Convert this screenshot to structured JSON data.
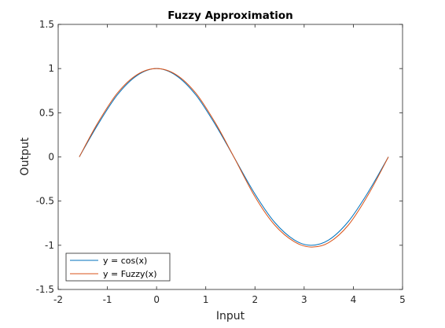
{
  "chart_data": {
    "type": "line",
    "title": "Fuzzy Approximation",
    "xlabel": "Input",
    "ylabel": "Output",
    "xlim": [
      -2,
      5
    ],
    "ylim": [
      -1.5,
      1.5
    ],
    "xticks": [
      "-2",
      "-1",
      "0",
      "1",
      "2",
      "3",
      "4",
      "5"
    ],
    "yticks": [
      "1.5",
      "1",
      "0.5",
      "0",
      "-0.5",
      "-1",
      "-1.5"
    ],
    "grid": false,
    "legend_position": "bottom-left",
    "series": [
      {
        "name": "y = cos(x)",
        "color": "#0072BD",
        "x": [
          -1.5708,
          -1.2,
          -0.8,
          -0.4,
          0,
          0.4,
          0.8,
          1.2,
          1.5708,
          2.0,
          2.4,
          2.8,
          3.1416,
          3.5,
          3.9,
          4.3,
          4.7124
        ],
        "y": [
          0.0,
          0.36,
          0.7,
          0.92,
          1.0,
          0.92,
          0.7,
          0.36,
          0.0,
          -0.42,
          -0.74,
          -0.94,
          -1.0,
          -0.94,
          -0.73,
          -0.4,
          0.0
        ]
      },
      {
        "name": "y = Fuzzy(x)",
        "color": "#D95319",
        "x": [
          -1.5708,
          -1.2,
          -0.8,
          -0.4,
          0,
          0.4,
          0.8,
          1.2,
          1.5708,
          2.0,
          2.4,
          2.8,
          3.1416,
          3.5,
          3.9,
          4.3,
          4.7124
        ],
        "y": [
          0.0,
          0.38,
          0.72,
          0.93,
          1.0,
          0.93,
          0.72,
          0.38,
          0.0,
          -0.45,
          -0.77,
          -0.96,
          -1.02,
          -0.97,
          -0.77,
          -0.43,
          0.0
        ]
      }
    ]
  }
}
